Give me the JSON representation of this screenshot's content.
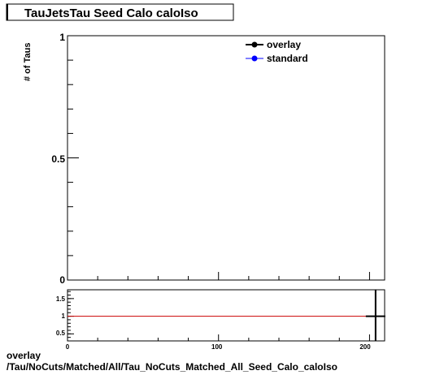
{
  "chart_data": [
    {
      "type": "line",
      "title": "TauJetsTau Seed Calo caloIso",
      "ylabel": "# of Taus",
      "xlim": [
        0,
        210
      ],
      "ylim": [
        0,
        1
      ],
      "y_tick_labels": [
        "0",
        "0.5",
        "1"
      ],
      "grid": false,
      "legend_position": "top-right",
      "series": [
        {
          "name": "overlay",
          "color": "#000000",
          "points": []
        },
        {
          "name": "standard",
          "color": "#0000ff",
          "points": []
        }
      ]
    },
    {
      "type": "line",
      "xlim": [
        0,
        210
      ],
      "ylim": [
        0.3,
        1.75
      ],
      "x_tick_labels": [
        "0",
        "100",
        "200"
      ],
      "y_tick_labels": [
        "0.5",
        "1",
        "1.5"
      ],
      "reference_line": {
        "y": 1,
        "color": "#cc0000"
      },
      "points": [
        {
          "x": 204,
          "y": 1
        }
      ]
    }
  ],
  "footer": {
    "line1": "overlay",
    "line2": "/Tau/NoCuts/Matched/All/Tau_NoCuts_Matched_All_Seed_Calo_caloIso"
  }
}
